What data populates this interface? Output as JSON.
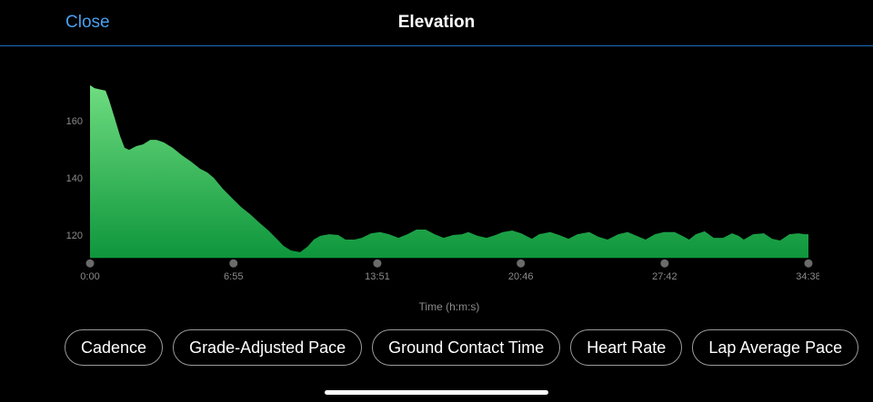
{
  "header": {
    "close_label": "Close",
    "title": "Elevation"
  },
  "colors": {
    "accent": "#4a9ff0",
    "fill_top": "#6fdc80",
    "fill_bottom": "#0e963c",
    "axis_text": "#8a8a8a"
  },
  "chart_data": {
    "type": "area",
    "title": "Elevation",
    "xlabel": "Time (h:m:s)",
    "ylabel": "",
    "xlim": [
      0,
      2078
    ],
    "ylim": [
      112,
      172.5
    ],
    "yticks": [
      120,
      140,
      160
    ],
    "xticks": [
      0,
      415,
      831,
      1246,
      1662,
      2078
    ],
    "xtick_labels": [
      "0:00",
      "6:55",
      "13:51",
      "20:46",
      "27:42",
      "34:38"
    ],
    "x": [
      0,
      13,
      34,
      45,
      55,
      71,
      87,
      100,
      113,
      134,
      153,
      174,
      192,
      213,
      239,
      266,
      292,
      318,
      339,
      358,
      384,
      410,
      437,
      463,
      489,
      516,
      542,
      560,
      581,
      608,
      629,
      647,
      666,
      692,
      718,
      739,
      765,
      786,
      813,
      839,
      865,
      892,
      918,
      944,
      971,
      997,
      1023,
      1050,
      1076,
      1094,
      1121,
      1147,
      1173,
      1194,
      1221,
      1247,
      1278,
      1299,
      1331,
      1357,
      1384,
      1410,
      1444,
      1470,
      1497,
      1528,
      1555,
      1581,
      1607,
      1634,
      1660,
      1691,
      1718,
      1733,
      1752,
      1778,
      1804,
      1831,
      1857,
      1876,
      1891,
      1918,
      1949,
      1973,
      1996,
      2023,
      2049,
      2068,
      2078
    ],
    "y": [
      172.4,
      171.4,
      170.8,
      170.5,
      167.3,
      161.0,
      154.6,
      150.5,
      149.8,
      151.1,
      151.7,
      153.3,
      153.3,
      152.4,
      150.5,
      147.9,
      145.7,
      143.2,
      141.9,
      140.0,
      136.2,
      133.0,
      129.8,
      127.3,
      124.4,
      121.6,
      118.4,
      116.2,
      114.6,
      114.0,
      115.9,
      118.4,
      119.7,
      120.3,
      120.0,
      118.4,
      118.4,
      119.0,
      120.6,
      121.0,
      120.3,
      119.0,
      120.3,
      121.9,
      121.9,
      120.3,
      119.0,
      120.0,
      120.3,
      121.0,
      119.7,
      119.0,
      120.0,
      121.0,
      121.6,
      120.6,
      118.7,
      120.3,
      121.0,
      120.0,
      118.7,
      120.3,
      121.0,
      119.4,
      118.4,
      120.3,
      121.0,
      119.7,
      118.4,
      120.3,
      121.0,
      121.0,
      119.4,
      118.4,
      120.3,
      121.3,
      119.0,
      119.0,
      120.6,
      119.7,
      118.4,
      120.3,
      120.6,
      118.7,
      118.1,
      120.3,
      120.6,
      120.3,
      120.3
    ]
  },
  "metric_chips": [
    "Cadence",
    "Grade-Adjusted Pace",
    "Ground Contact Time",
    "Heart Rate",
    "Lap Average Pace"
  ]
}
